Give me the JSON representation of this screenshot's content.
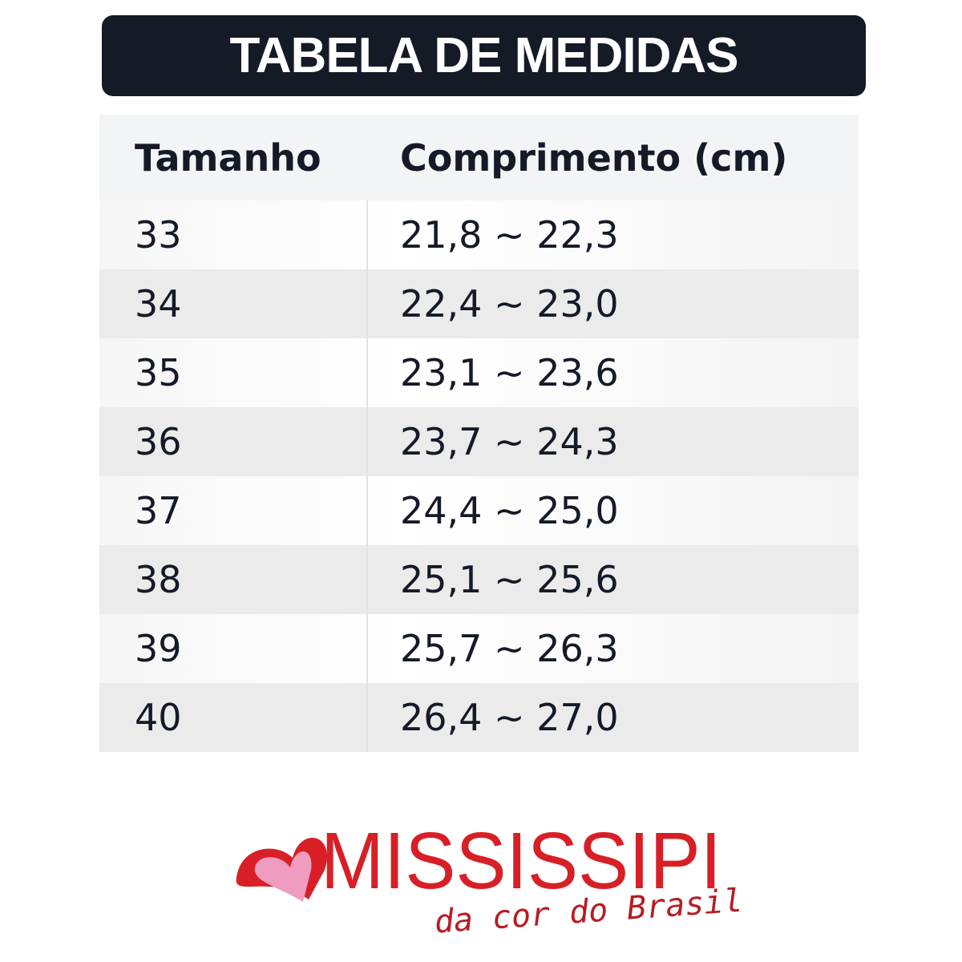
{
  "header": {
    "title": "TABELA DE MEDIDAS"
  },
  "table": {
    "columns": [
      "Tamanho",
      "Comprimento (cm)"
    ],
    "rows": [
      [
        "33",
        "21,8 ~ 22,3"
      ],
      [
        "34",
        "22,4 ~ 23,0"
      ],
      [
        "35",
        "23,1 ~ 23,6"
      ],
      [
        "36",
        "23,7 ~ 24,3"
      ],
      [
        "37",
        "24,4 ~ 25,0"
      ],
      [
        "38",
        "25,1 ~ 25,6"
      ],
      [
        "39",
        "25,7 ~ 26,3"
      ],
      [
        "40",
        "26,4 ~ 27,0"
      ]
    ]
  },
  "logo": {
    "name": "MISSISSIPI",
    "tagline": "da cor do Brasil"
  }
}
